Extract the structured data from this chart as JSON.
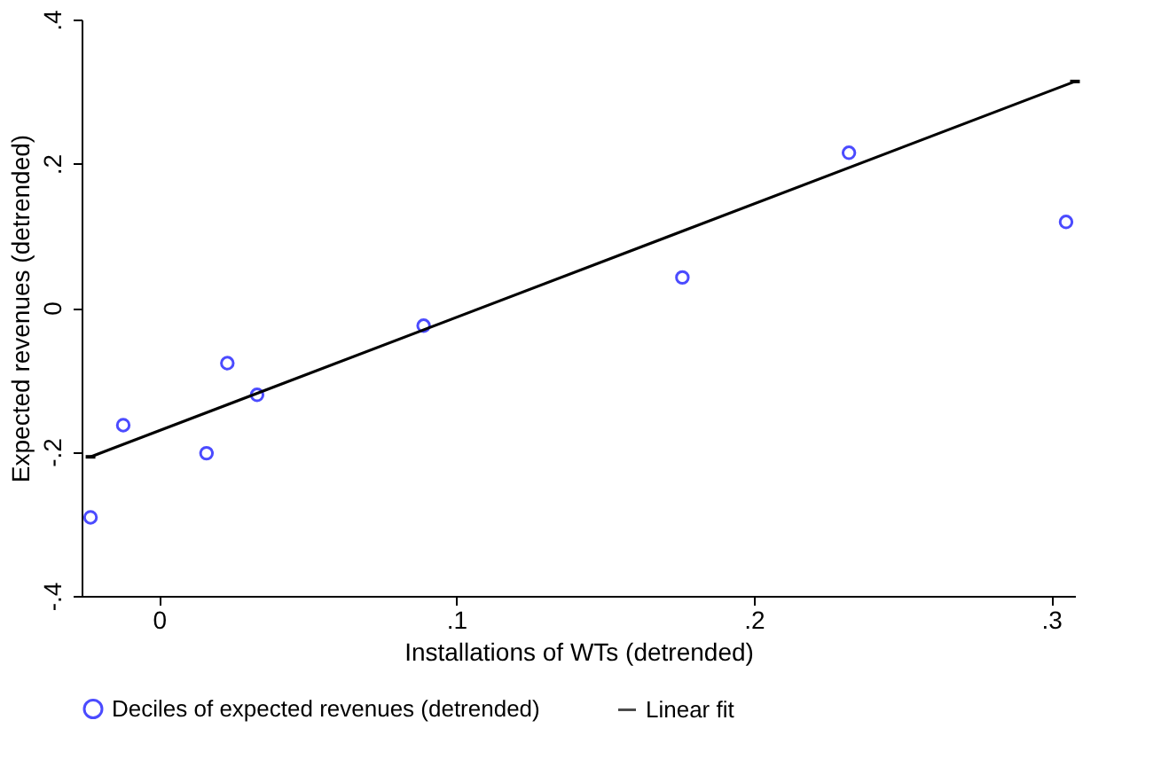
{
  "chart_data": {
    "type": "scatter",
    "xlabel": "Installations of WTs (detrended)",
    "ylabel": "Expected revenues (detrended)",
    "xlim": [
      -0.026,
      0.308
    ],
    "ylim": [
      -0.4,
      0.4
    ],
    "xticks": [
      0,
      {
        "value": 0.1,
        "label": ".1"
      },
      {
        "value": 0.2,
        "label": ".2"
      },
      {
        "value": 0.3,
        "label": ".3"
      }
    ],
    "yticks": [
      {
        "value": -0.4,
        "label": "-.4"
      },
      {
        "value": -0.2,
        "label": "-.2"
      },
      0,
      {
        "value": 0.2,
        "label": ".2"
      },
      {
        "value": 0.4,
        "label": ".4"
      }
    ],
    "grid": false,
    "legend": "bottom",
    "series": [
      {
        "name": "Deciles of expected revenues (detrended)",
        "marker": "circle",
        "color": "#0000ff",
        "x": [
          -0.023,
          -0.012,
          0.016,
          0.023,
          0.033,
          0.089,
          0.176,
          0.232,
          0.305
        ],
        "values": [
          -0.291,
          -0.163,
          -0.202,
          -0.077,
          -0.121,
          -0.025,
          0.042,
          0.215,
          0.119
        ]
      },
      {
        "name": "Linear fit",
        "type": "line",
        "marker": "none",
        "color": "#000000",
        "line_style": "solid",
        "x": [
          -0.023,
          0.308
        ],
        "values": [
          -0.207,
          0.314
        ]
      }
    ]
  }
}
